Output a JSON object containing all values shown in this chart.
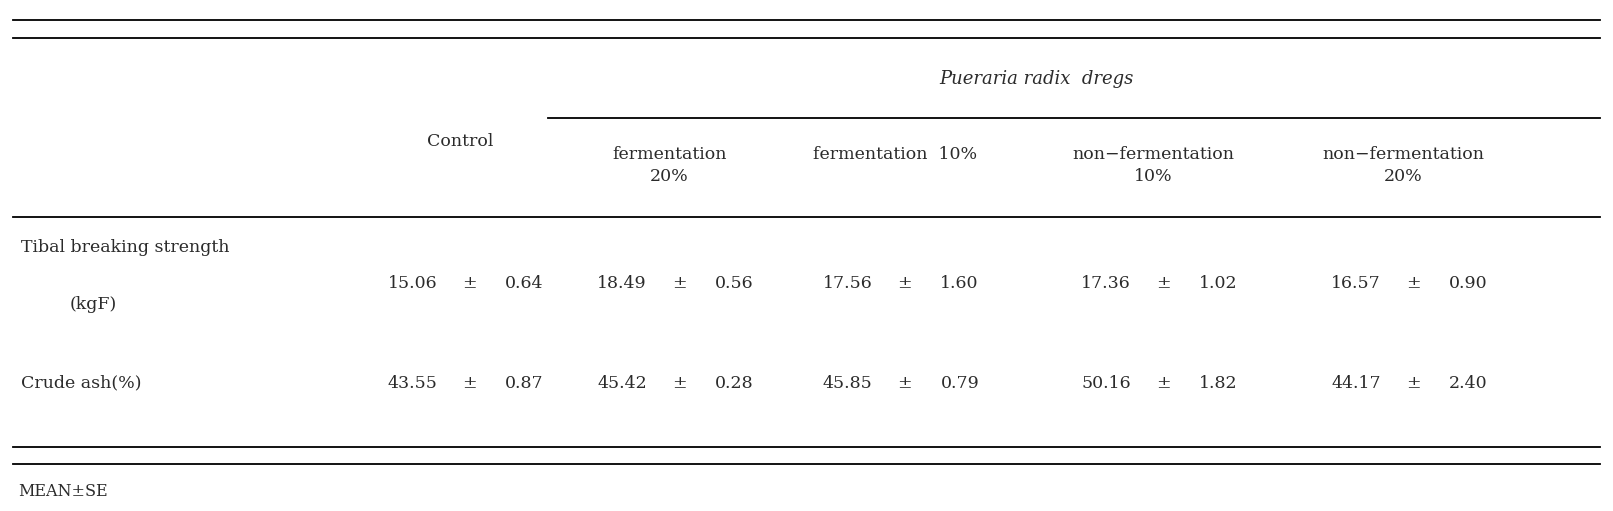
{
  "title_italic": "Pueraria radix  dregs",
  "col_headers_pueraria": [
    "fermentation\n20%",
    "fermentation  10%",
    "non−fermentation\n10%",
    "non−fermentation\n20%"
  ],
  "control_header": "Control",
  "row_labels": [
    "Tibal breaking strength\n(kgF)",
    "Crude ash(%)"
  ],
  "data": [
    [
      "15.06",
      "±",
      "0.64",
      "18.49",
      "±",
      "0.56",
      "17.56",
      "±",
      "1.60",
      "17.36",
      "±",
      "1.02",
      "16.57",
      "±",
      "0.90"
    ],
    [
      "43.55",
      "±",
      "0.87",
      "45.42",
      "±",
      "0.28",
      "45.85",
      "±",
      "0.79",
      "50.16",
      "±",
      "1.82",
      "44.17",
      "±",
      "2.40"
    ]
  ],
  "footnote": "MEAN±SE",
  "bg_color": "#ffffff",
  "text_color": "#2b2b2b",
  "font_size": 12.5,
  "header_font_size": 12.5
}
